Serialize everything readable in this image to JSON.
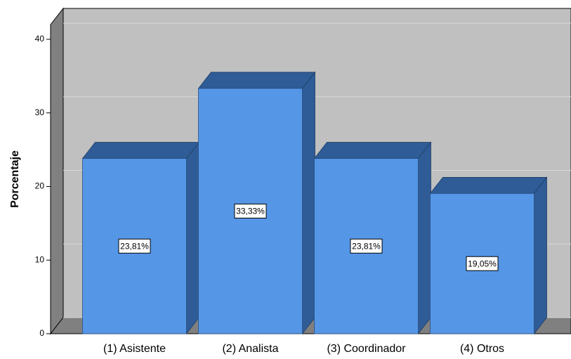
{
  "chart_data": {
    "type": "bar3d",
    "y_label": "Porcentaje",
    "categories": [
      "(1) Asistente",
      "(2) Analista",
      "(3) Coordinador",
      "(4) Otros"
    ],
    "values": [
      23.81,
      33.33,
      23.81,
      19.05
    ],
    "value_labels": [
      "23,81%",
      "33,33%",
      "23,81%",
      "19,05%"
    ],
    "color": "#5596e6",
    "ylim": [
      0,
      42
    ],
    "yticks": [
      0,
      10,
      20,
      30,
      40
    ],
    "grid": true
  }
}
